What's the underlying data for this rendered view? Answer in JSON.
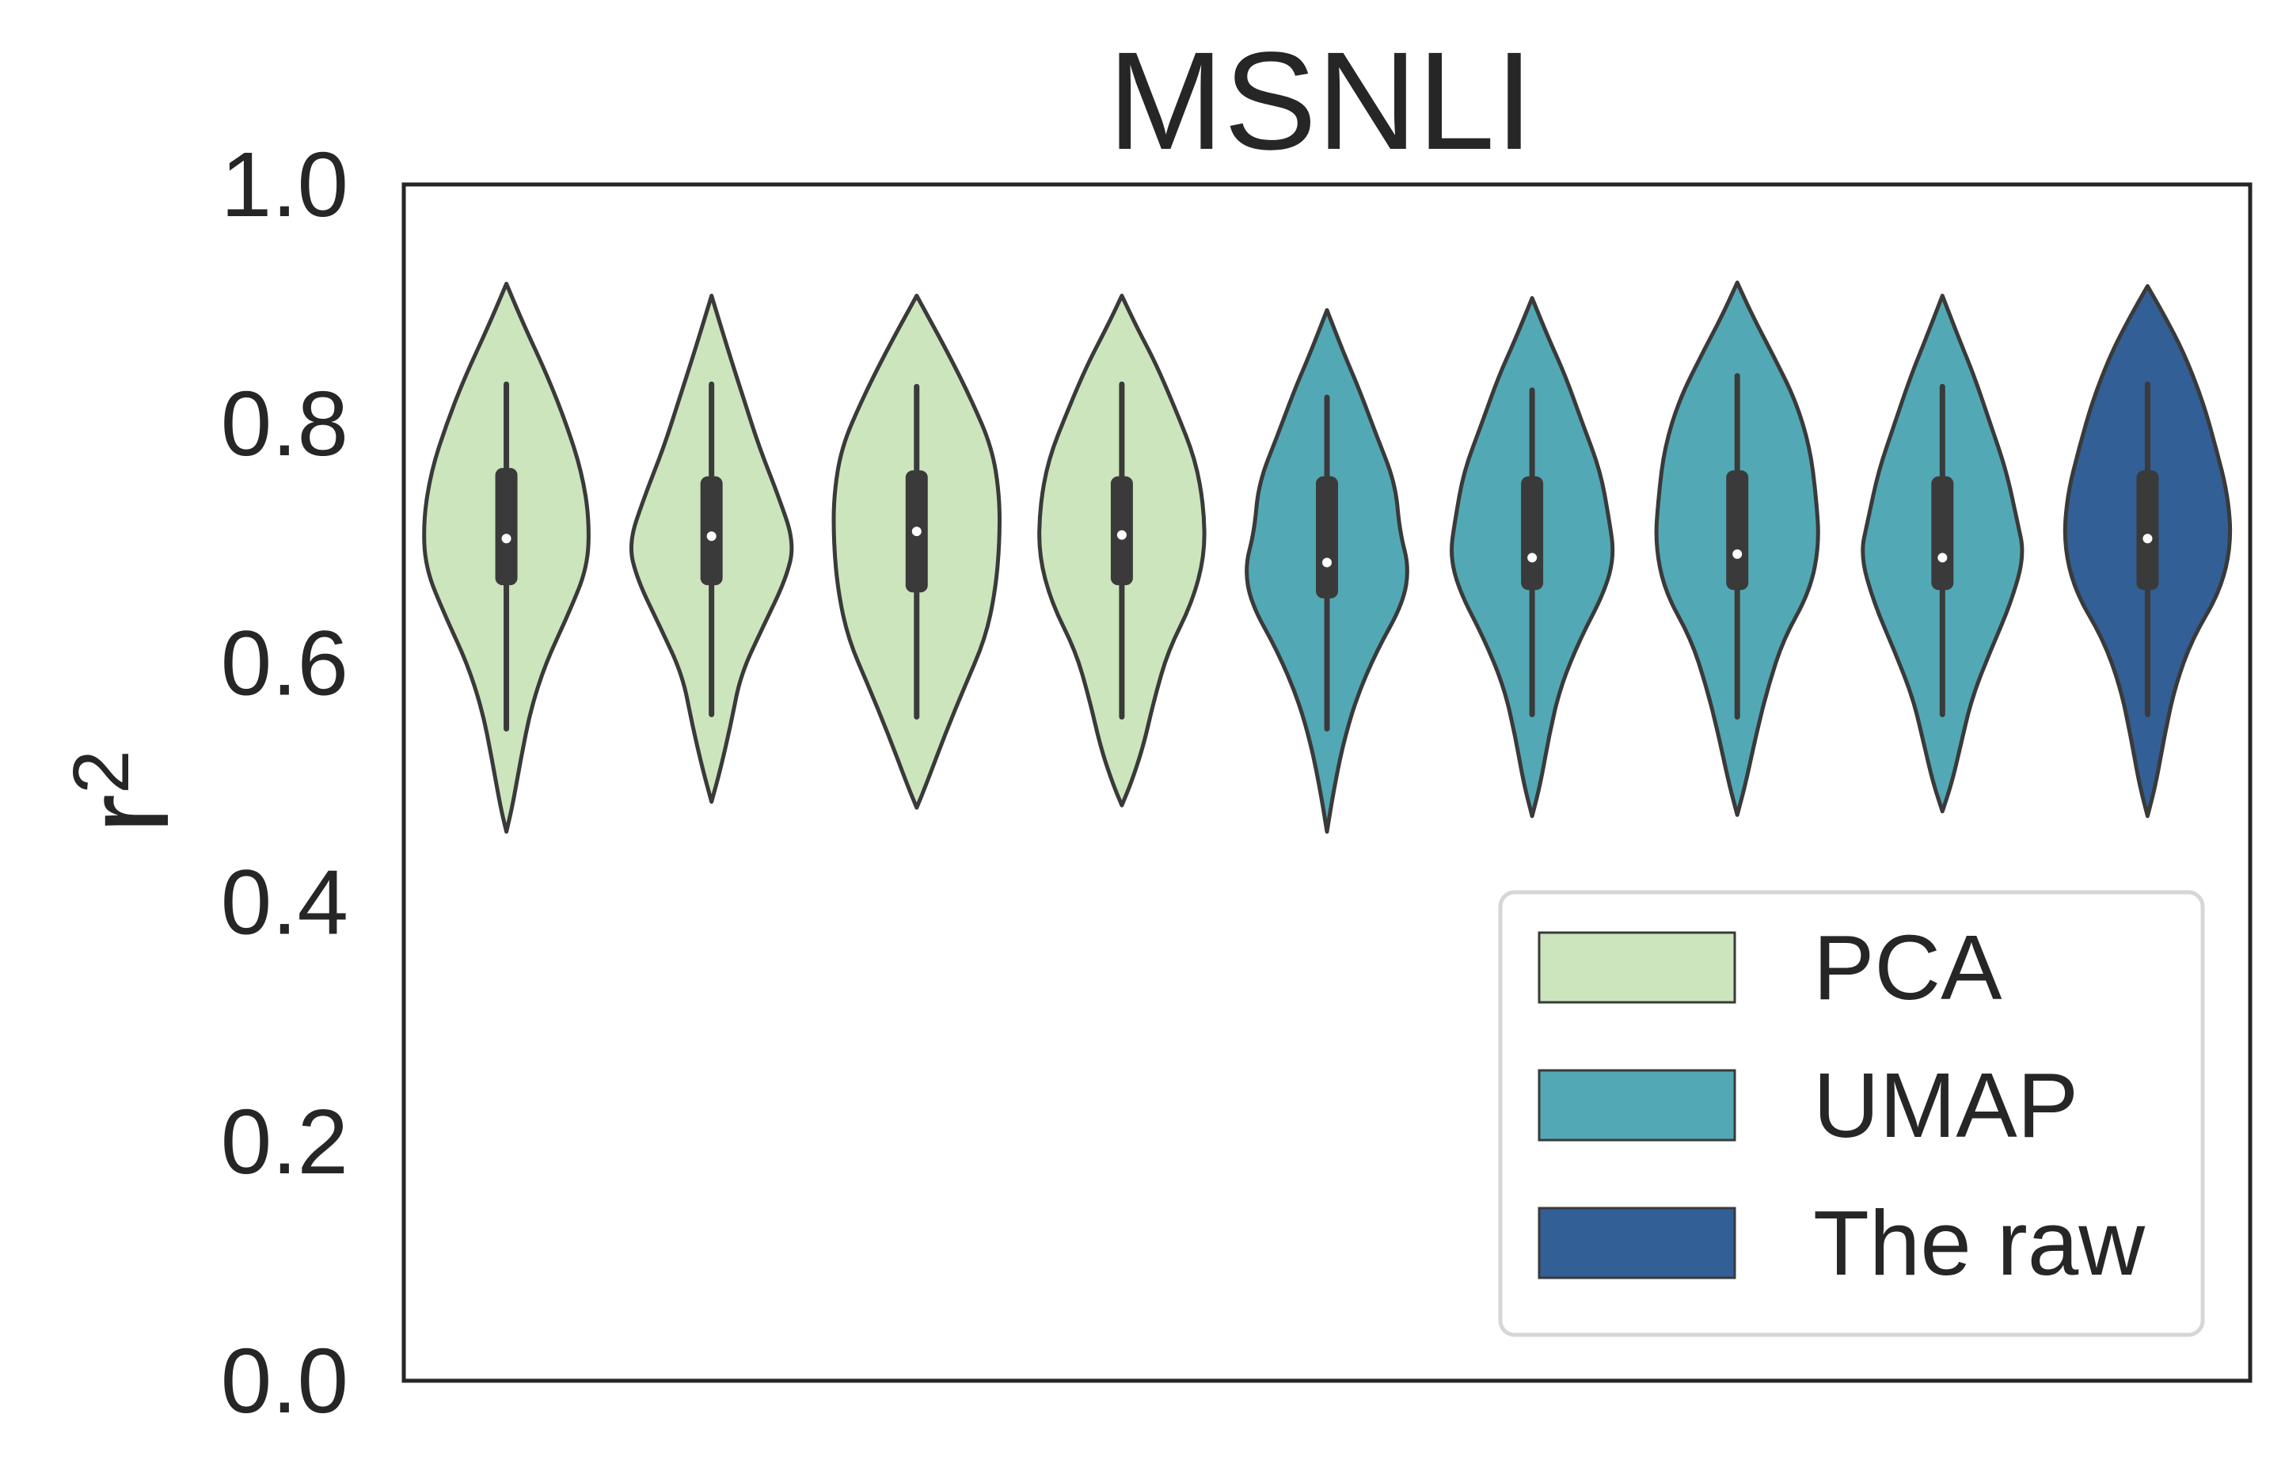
{
  "chart_data": {
    "type": "violin",
    "title": "MSNLI",
    "xlabel": "",
    "ylabel": "r",
    "ylabel_superscript": "2",
    "ylim": [
      0.0,
      1.0
    ],
    "yticks": [
      "0.0",
      "0.2",
      "0.4",
      "0.6",
      "0.8",
      "1.0"
    ],
    "grid": false,
    "legend_position": "lower-right",
    "legend": [
      {
        "label": "PCA",
        "color": "#cce5bd"
      },
      {
        "label": "UMAP",
        "color": "#52a9b5"
      },
      {
        "label": "The raw",
        "color": "#325f96"
      }
    ],
    "violins": [
      {
        "group": "PCA",
        "min": 0.459,
        "max": 0.917,
        "whisker_low": 0.545,
        "q1": 0.665,
        "median": 0.704,
        "q3": 0.763,
        "whisker_high": 0.833,
        "shape": [
          [
            0.459,
            0.0
          ],
          [
            0.48,
            0.07
          ],
          [
            0.52,
            0.17
          ],
          [
            0.56,
            0.28
          ],
          [
            0.6,
            0.46
          ],
          [
            0.64,
            0.72
          ],
          [
            0.68,
            0.95
          ],
          [
            0.72,
            0.97
          ],
          [
            0.76,
            0.88
          ],
          [
            0.8,
            0.7
          ],
          [
            0.84,
            0.48
          ],
          [
            0.88,
            0.22
          ],
          [
            0.917,
            0.0
          ]
        ]
      },
      {
        "group": "PCA",
        "min": 0.484,
        "max": 0.907,
        "whisker_low": 0.557,
        "q1": 0.665,
        "median": 0.706,
        "q3": 0.756,
        "whisker_high": 0.833,
        "shape": [
          [
            0.484,
            0.0
          ],
          [
            0.51,
            0.1
          ],
          [
            0.55,
            0.23
          ],
          [
            0.59,
            0.34
          ],
          [
            0.63,
            0.6
          ],
          [
            0.67,
            0.87
          ],
          [
            0.7,
            0.97
          ],
          [
            0.74,
            0.78
          ],
          [
            0.78,
            0.56
          ],
          [
            0.82,
            0.38
          ],
          [
            0.86,
            0.2
          ],
          [
            0.907,
            0.0
          ]
        ]
      },
      {
        "group": "PCA",
        "min": 0.479,
        "max": 0.907,
        "whisker_low": 0.555,
        "q1": 0.659,
        "median": 0.71,
        "q3": 0.761,
        "whisker_high": 0.831,
        "shape": [
          [
            0.479,
            0.0
          ],
          [
            0.5,
            0.12
          ],
          [
            0.54,
            0.33
          ],
          [
            0.58,
            0.56
          ],
          [
            0.62,
            0.8
          ],
          [
            0.66,
            0.92
          ],
          [
            0.7,
            0.97
          ],
          [
            0.74,
            0.97
          ],
          [
            0.78,
            0.88
          ],
          [
            0.82,
            0.64
          ],
          [
            0.86,
            0.36
          ],
          [
            0.907,
            0.0
          ]
        ]
      },
      {
        "group": "PCA",
        "min": 0.481,
        "max": 0.907,
        "whisker_low": 0.555,
        "q1": 0.665,
        "median": 0.707,
        "q3": 0.756,
        "whisker_high": 0.833,
        "shape": [
          [
            0.481,
            0.0
          ],
          [
            0.5,
            0.11
          ],
          [
            0.53,
            0.25
          ],
          [
            0.57,
            0.38
          ],
          [
            0.61,
            0.54
          ],
          [
            0.65,
            0.82
          ],
          [
            0.69,
            0.97
          ],
          [
            0.73,
            0.96
          ],
          [
            0.77,
            0.86
          ],
          [
            0.81,
            0.64
          ],
          [
            0.85,
            0.4
          ],
          [
            0.88,
            0.18
          ],
          [
            0.907,
            0.0
          ]
        ]
      },
      {
        "group": "UMAP",
        "min": 0.459,
        "max": 0.895,
        "whisker_low": 0.545,
        "q1": 0.654,
        "median": 0.684,
        "q3": 0.756,
        "whisker_high": 0.822,
        "shape": [
          [
            0.459,
            0.0
          ],
          [
            0.49,
            0.07
          ],
          [
            0.53,
            0.18
          ],
          [
            0.57,
            0.34
          ],
          [
            0.61,
            0.58
          ],
          [
            0.65,
            0.89
          ],
          [
            0.68,
            0.96
          ],
          [
            0.71,
            0.85
          ],
          [
            0.75,
            0.8
          ],
          [
            0.79,
            0.58
          ],
          [
            0.83,
            0.37
          ],
          [
            0.86,
            0.19
          ],
          [
            0.895,
            0.0
          ]
        ]
      },
      {
        "group": "UMAP",
        "min": 0.472,
        "max": 0.905,
        "whisker_low": 0.557,
        "q1": 0.661,
        "median": 0.688,
        "q3": 0.756,
        "whisker_high": 0.828,
        "shape": [
          [
            0.472,
            0.0
          ],
          [
            0.5,
            0.1
          ],
          [
            0.54,
            0.2
          ],
          [
            0.58,
            0.33
          ],
          [
            0.62,
            0.56
          ],
          [
            0.66,
            0.85
          ],
          [
            0.69,
            0.96
          ],
          [
            0.72,
            0.9
          ],
          [
            0.76,
            0.8
          ],
          [
            0.8,
            0.59
          ],
          [
            0.84,
            0.39
          ],
          [
            0.87,
            0.2
          ],
          [
            0.905,
            0.0
          ]
        ]
      },
      {
        "group": "UMAP",
        "min": 0.473,
        "max": 0.918,
        "whisker_low": 0.555,
        "q1": 0.661,
        "median": 0.691,
        "q3": 0.761,
        "whisker_high": 0.84,
        "shape": [
          [
            0.473,
            0.0
          ],
          [
            0.5,
            0.1
          ],
          [
            0.54,
            0.22
          ],
          [
            0.58,
            0.36
          ],
          [
            0.62,
            0.54
          ],
          [
            0.66,
            0.85
          ],
          [
            0.7,
            0.96
          ],
          [
            0.74,
            0.92
          ],
          [
            0.78,
            0.85
          ],
          [
            0.82,
            0.68
          ],
          [
            0.86,
            0.4
          ],
          [
            0.89,
            0.18
          ],
          [
            0.918,
            0.0
          ]
        ]
      },
      {
        "group": "UMAP",
        "min": 0.476,
        "max": 0.907,
        "whisker_low": 0.557,
        "q1": 0.661,
        "median": 0.688,
        "q3": 0.756,
        "whisker_high": 0.831,
        "shape": [
          [
            0.476,
            0.0
          ],
          [
            0.5,
            0.11
          ],
          [
            0.53,
            0.21
          ],
          [
            0.57,
            0.34
          ],
          [
            0.61,
            0.56
          ],
          [
            0.65,
            0.8
          ],
          [
            0.69,
            0.96
          ],
          [
            0.72,
            0.87
          ],
          [
            0.76,
            0.75
          ],
          [
            0.8,
            0.56
          ],
          [
            0.84,
            0.37
          ],
          [
            0.87,
            0.2
          ],
          [
            0.907,
            0.0
          ]
        ]
      },
      {
        "group": "The raw",
        "min": 0.472,
        "max": 0.915,
        "whisker_low": 0.557,
        "q1": 0.661,
        "median": 0.704,
        "q3": 0.761,
        "whisker_high": 0.833,
        "shape": [
          [
            0.472,
            0.0
          ],
          [
            0.5,
            0.1
          ],
          [
            0.54,
            0.2
          ],
          [
            0.58,
            0.32
          ],
          [
            0.62,
            0.52
          ],
          [
            0.66,
            0.85
          ],
          [
            0.7,
            0.98
          ],
          [
            0.74,
            0.94
          ],
          [
            0.78,
            0.8
          ],
          [
            0.82,
            0.64
          ],
          [
            0.86,
            0.42
          ],
          [
            0.89,
            0.2
          ],
          [
            0.915,
            0.0
          ]
        ]
      }
    ]
  }
}
